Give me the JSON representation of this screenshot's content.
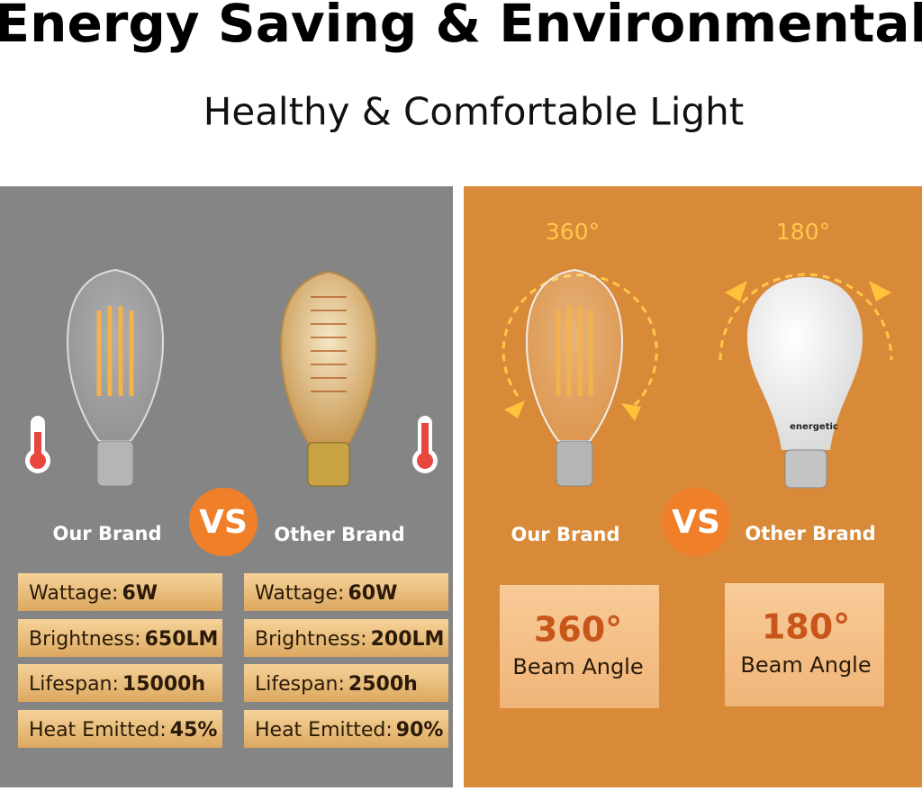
{
  "header": {
    "title": "Energy Saving & Environmental",
    "subtitle": "Healthy & Comfortable Light"
  },
  "left_panel": {
    "brands": [
      "Our Brand",
      "Other Brand"
    ],
    "vs": "VS",
    "specs": [
      [
        {
          "label": "Wattage:",
          "value": "6W"
        },
        {
          "label": "Brightness:",
          "value": "650LM"
        },
        {
          "label": "Lifespan:",
          "value": "15000h"
        },
        {
          "label": "Heat Emitted:",
          "value": "45%"
        }
      ],
      [
        {
          "label": "Wattage:",
          "value": "60W"
        },
        {
          "label": "Brightness:",
          "value": "200LM"
        },
        {
          "label": "Lifespan:",
          "value": "2500h"
        },
        {
          "label": "Heat Emitted:",
          "value": "90%"
        }
      ]
    ]
  },
  "right_panel": {
    "arc_labels": [
      "360°",
      "180°"
    ],
    "bulb_brand": "energetic",
    "brands": [
      "Our Brand",
      "Other Brand"
    ],
    "vs": "VS",
    "boxes": [
      {
        "angle": "360°",
        "caption": "Beam Angle"
      },
      {
        "angle": "180°",
        "caption": "Beam Angle"
      }
    ]
  }
}
